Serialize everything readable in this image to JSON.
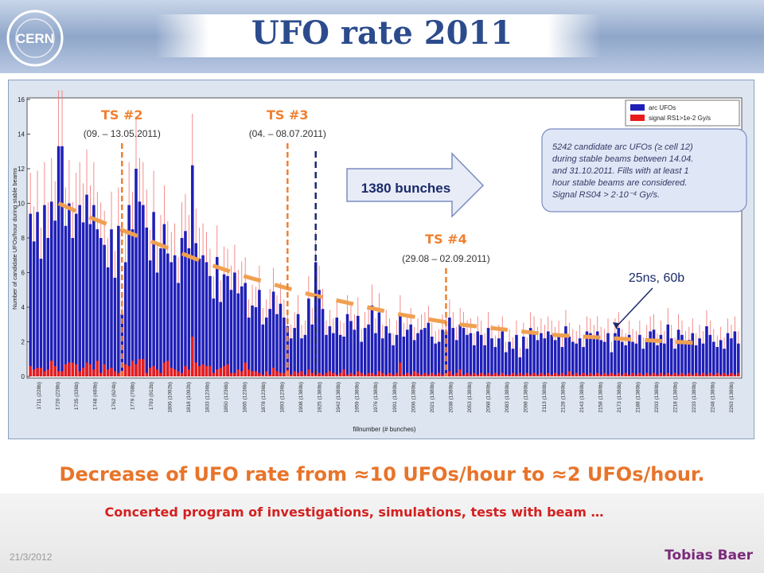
{
  "slide": {
    "title": "UFO rate 2011",
    "headline": "Decrease of UFO rate from ≈10 UFOs/hour to ≈2 UFOs/hour.",
    "subline": "Concerted program of investigations, simulations, tests with beam …",
    "date": "21/3/2012",
    "author": "Tobias Baer",
    "logo_text": "CERN",
    "logo_icon": "cern-logo-icon"
  },
  "chart_data": {
    "type": "bar",
    "title": "",
    "xlabel": "fillnumber (# bunches)",
    "ylabel": "Number of candidate UFOs/hour during stable beams",
    "ylim": [
      0,
      16
    ],
    "yticks": [
      0,
      2,
      4,
      6,
      8,
      10,
      12,
      14,
      16
    ],
    "grid": false,
    "legend_position": "top-right",
    "colors": {
      "arc": "#1f1fb8",
      "signal": "#e81c1c",
      "trend": "#f0a050",
      "ts": "#f08030",
      "bunch_line": "#1a2a6a"
    },
    "legend": [
      "arc UFOs",
      "signal RS1>1e-2 Gy/s"
    ],
    "series": [
      {
        "name": "arc UFOs",
        "values": [
          9.4,
          7.8,
          9.5,
          6.8,
          9.9,
          8.0,
          10.1,
          9.0,
          13.3,
          13.3,
          8.7,
          10.0,
          8.0,
          9.4,
          9.9,
          8.9,
          10.5,
          8.8,
          9.9,
          8.5,
          8.0,
          7.6,
          6.3,
          8.5,
          5.7,
          8.7,
          3.6,
          6.6,
          9.9,
          8.5,
          12.0,
          10.1,
          9.9,
          8.6,
          6.7,
          9.5,
          6.0,
          7.4,
          8.8,
          7.1,
          6.6,
          7.0,
          5.4,
          8.0,
          8.4,
          7.4,
          12.2,
          7.7,
          6.8,
          7.0,
          6.6,
          5.8,
          4.5,
          6.9,
          4.3,
          5.9,
          5.8,
          5.0,
          6.0,
          4.8,
          5.2,
          5.4,
          3.4,
          4.1,
          4.0,
          5.0,
          3.0,
          3.4,
          3.9,
          4.9,
          3.6,
          4.2,
          3.4,
          2.9,
          2.2,
          2.8,
          3.6,
          2.2,
          2.4,
          4.5,
          3.0,
          6.6,
          5.0,
          3.9,
          2.4,
          2.9,
          2.5,
          3.4,
          2.4,
          2.3,
          3.6,
          3.2,
          2.7,
          3.5,
          2.0,
          2.8,
          3.0,
          4.1,
          2.5,
          3.7,
          2.2,
          2.9,
          2.5,
          1.8,
          2.4,
          3.6,
          2.3,
          2.7,
          3.0,
          2.1,
          2.5,
          2.7,
          2.8,
          3.1,
          2.3,
          1.9,
          2.0,
          2.7,
          2.6,
          3.4,
          2.8,
          2.1,
          3.0,
          2.8,
          2.4,
          2.5,
          1.8,
          2.6,
          2.4,
          1.8,
          2.8,
          2.2,
          1.7,
          2.2,
          2.6,
          1.4,
          2.0,
          1.6,
          2.4,
          1.1,
          2.3,
          1.6,
          2.8,
          2.6,
          2.1,
          2.5,
          2.2,
          2.6,
          2.4,
          2.1,
          2.4,
          1.7,
          2.9,
          2.3,
          2.0,
          1.9,
          2.2,
          1.7,
          2.6,
          2.5,
          2.2,
          2.6,
          2.1,
          2.0,
          2.5,
          1.4,
          2.5,
          2.8,
          2.0,
          1.8,
          2.4,
          2.0,
          1.9,
          2.4,
          1.6,
          2.2,
          2.6,
          2.7,
          1.8,
          2.4,
          1.9,
          3.0,
          2.2,
          1.6,
          2.7,
          2.4,
          1.9,
          2.1,
          2.5,
          1.8,
          2.2,
          1.9,
          2.9,
          2.4,
          2.0,
          1.7,
          2.1,
          1.6,
          2.5,
          2.2,
          2.6,
          1.9
        ]
      },
      {
        "name": "signal RS1>1e-2 Gy/s",
        "values": [
          0.6,
          0.4,
          0.5,
          0.5,
          0.3,
          0.4,
          0.9,
          0.6,
          0.3,
          0.3,
          0.7,
          0.8,
          0.8,
          0.7,
          0.3,
          0.5,
          0.8,
          0.7,
          0.4,
          0.9,
          0.2,
          0.7,
          0.4,
          0.5,
          0.3,
          0.2,
          0.3,
          0.7,
          0.6,
          0.9,
          0.7,
          1.0,
          1.0,
          0.2,
          0.5,
          0.6,
          0.4,
          0.2,
          0.8,
          0.9,
          0.5,
          0.4,
          0.3,
          0.2,
          0.6,
          0.4,
          2.3,
          0.8,
          0.6,
          0.7,
          0.6,
          0.6,
          0.2,
          0.4,
          0.5,
          0.6,
          0.7,
          0.2,
          0.2,
          0.4,
          0.3,
          0.8,
          0.4,
          0.3,
          0.3,
          0.2,
          0.1,
          0.3,
          0.1,
          0.5,
          0.3,
          0.2,
          0.2,
          0.4,
          0.1,
          0.3,
          0.2,
          0.3,
          0.1,
          0.4,
          0.2,
          0.3,
          0.2,
          0.1,
          0.2,
          0.3,
          0.2,
          0.1,
          0.2,
          0.4,
          0.1,
          0.2,
          0.1,
          0.3,
          0.2,
          0.1,
          0.2,
          0.2,
          0.1,
          0.3,
          0.2,
          0.1,
          0.2,
          0.1,
          0.2,
          0.8,
          0.1,
          0.2,
          0.1,
          0.3,
          0.2,
          0.1,
          0.2,
          0.1,
          0.2,
          0.1,
          0.2,
          0.1,
          0.2,
          0.3,
          0.1,
          0.2,
          0.4,
          0.1,
          0.2,
          0.1,
          0.2,
          0.1,
          0.2,
          0.1,
          0.2,
          0.1,
          0.2,
          0.1,
          0.2,
          0.1,
          0.1,
          0.2,
          0.1,
          0.2,
          0.1,
          0.2,
          0.1,
          0.2,
          0.1,
          0.2,
          0.1,
          0.2,
          0.1,
          0.2,
          0.1,
          0.2,
          0.1,
          0.3,
          0.1,
          0.2,
          0.1,
          0.2,
          0.1,
          0.2,
          0.1,
          0.2,
          0.1,
          0.2,
          0.1,
          0.2,
          0.1,
          0.2,
          0.1,
          0.2,
          0.1,
          0.2,
          0.1,
          0.2,
          0.1,
          0.2,
          0.1,
          0.2,
          0.1,
          0.2,
          0.1,
          0.2,
          0.1,
          0.2,
          0.1,
          0.2,
          0.1,
          0.2,
          0.1,
          0.2,
          0.1,
          0.2,
          0.1,
          0.2,
          0.1,
          0.2,
          0.1,
          0.2,
          0.1,
          0.2,
          0.1,
          0.2
        ]
      }
    ],
    "x_tick_labels": [
      "1711 (228b)",
      "1720 (228b)",
      "1735 (336b)",
      "1748 (480b)",
      "1762 (624b)",
      "1779 (768b)",
      "1793 (912b)",
      "1806 (1092b)",
      "1818 (1092b)",
      "1833 (1236b)",
      "1850 (1236b)",
      "1865 (1236b)",
      "1878 (1236b)",
      "1893 (1236b)",
      "1908 (1380b)",
      "1925 (1380b)",
      "1942 (1380b)",
      "1959 (1380b)",
      "1976 (1380b)",
      "1991 (1380b)",
      "2006 (1380b)",
      "2021 (1380b)",
      "2038 (1380b)",
      "2053 (1380b)",
      "2068 (1380b)",
      "2083 (1380b)",
      "2098 (1380b)",
      "2113 (1380b)",
      "2128 (1380b)",
      "2143 (1380b)",
      "2158 (1380b)",
      "2173 (1380b)",
      "2188 (1380b)",
      "2203 (1380b)",
      "2218 (1380b)",
      "2233 (1380b)",
      "2248 (1380b)",
      "2263 (1380b)"
    ],
    "trend_values": [
      10.0,
      9.2,
      8.5,
      7.8,
      7.1,
      6.4,
      5.8,
      5.3,
      4.8,
      4.4,
      4.0,
      3.6,
      3.3,
      3.0,
      2.8,
      2.6,
      2.4,
      2.3,
      2.2,
      2.1,
      2.0,
      1.9
    ],
    "annotations": {
      "ts2": {
        "label": "TS #2",
        "dates": "(09. – 13.05.2011)",
        "index": 26
      },
      "ts3": {
        "label": "TS #3",
        "dates": "(04. – 08.07.2011)",
        "index": 73
      },
      "ts4": {
        "label": "TS #4",
        "dates": "(29.08 – 02.09.2011)",
        "index": 118
      },
      "bunches_line_index": 81,
      "bunches_label": "1380 bunches",
      "info_box": [
        "5242 candidate arc UFOs (≥ cell 12)",
        "during stable beams between 14.04.",
        "and 31.10.2011. Fills with at least 1",
        "hour stable beams are considered.",
        "Signal RS04 > 2·10⁻⁴ Gy/s."
      ],
      "ns_label": "25ns, 60b",
      "ns_index": 166
    }
  }
}
